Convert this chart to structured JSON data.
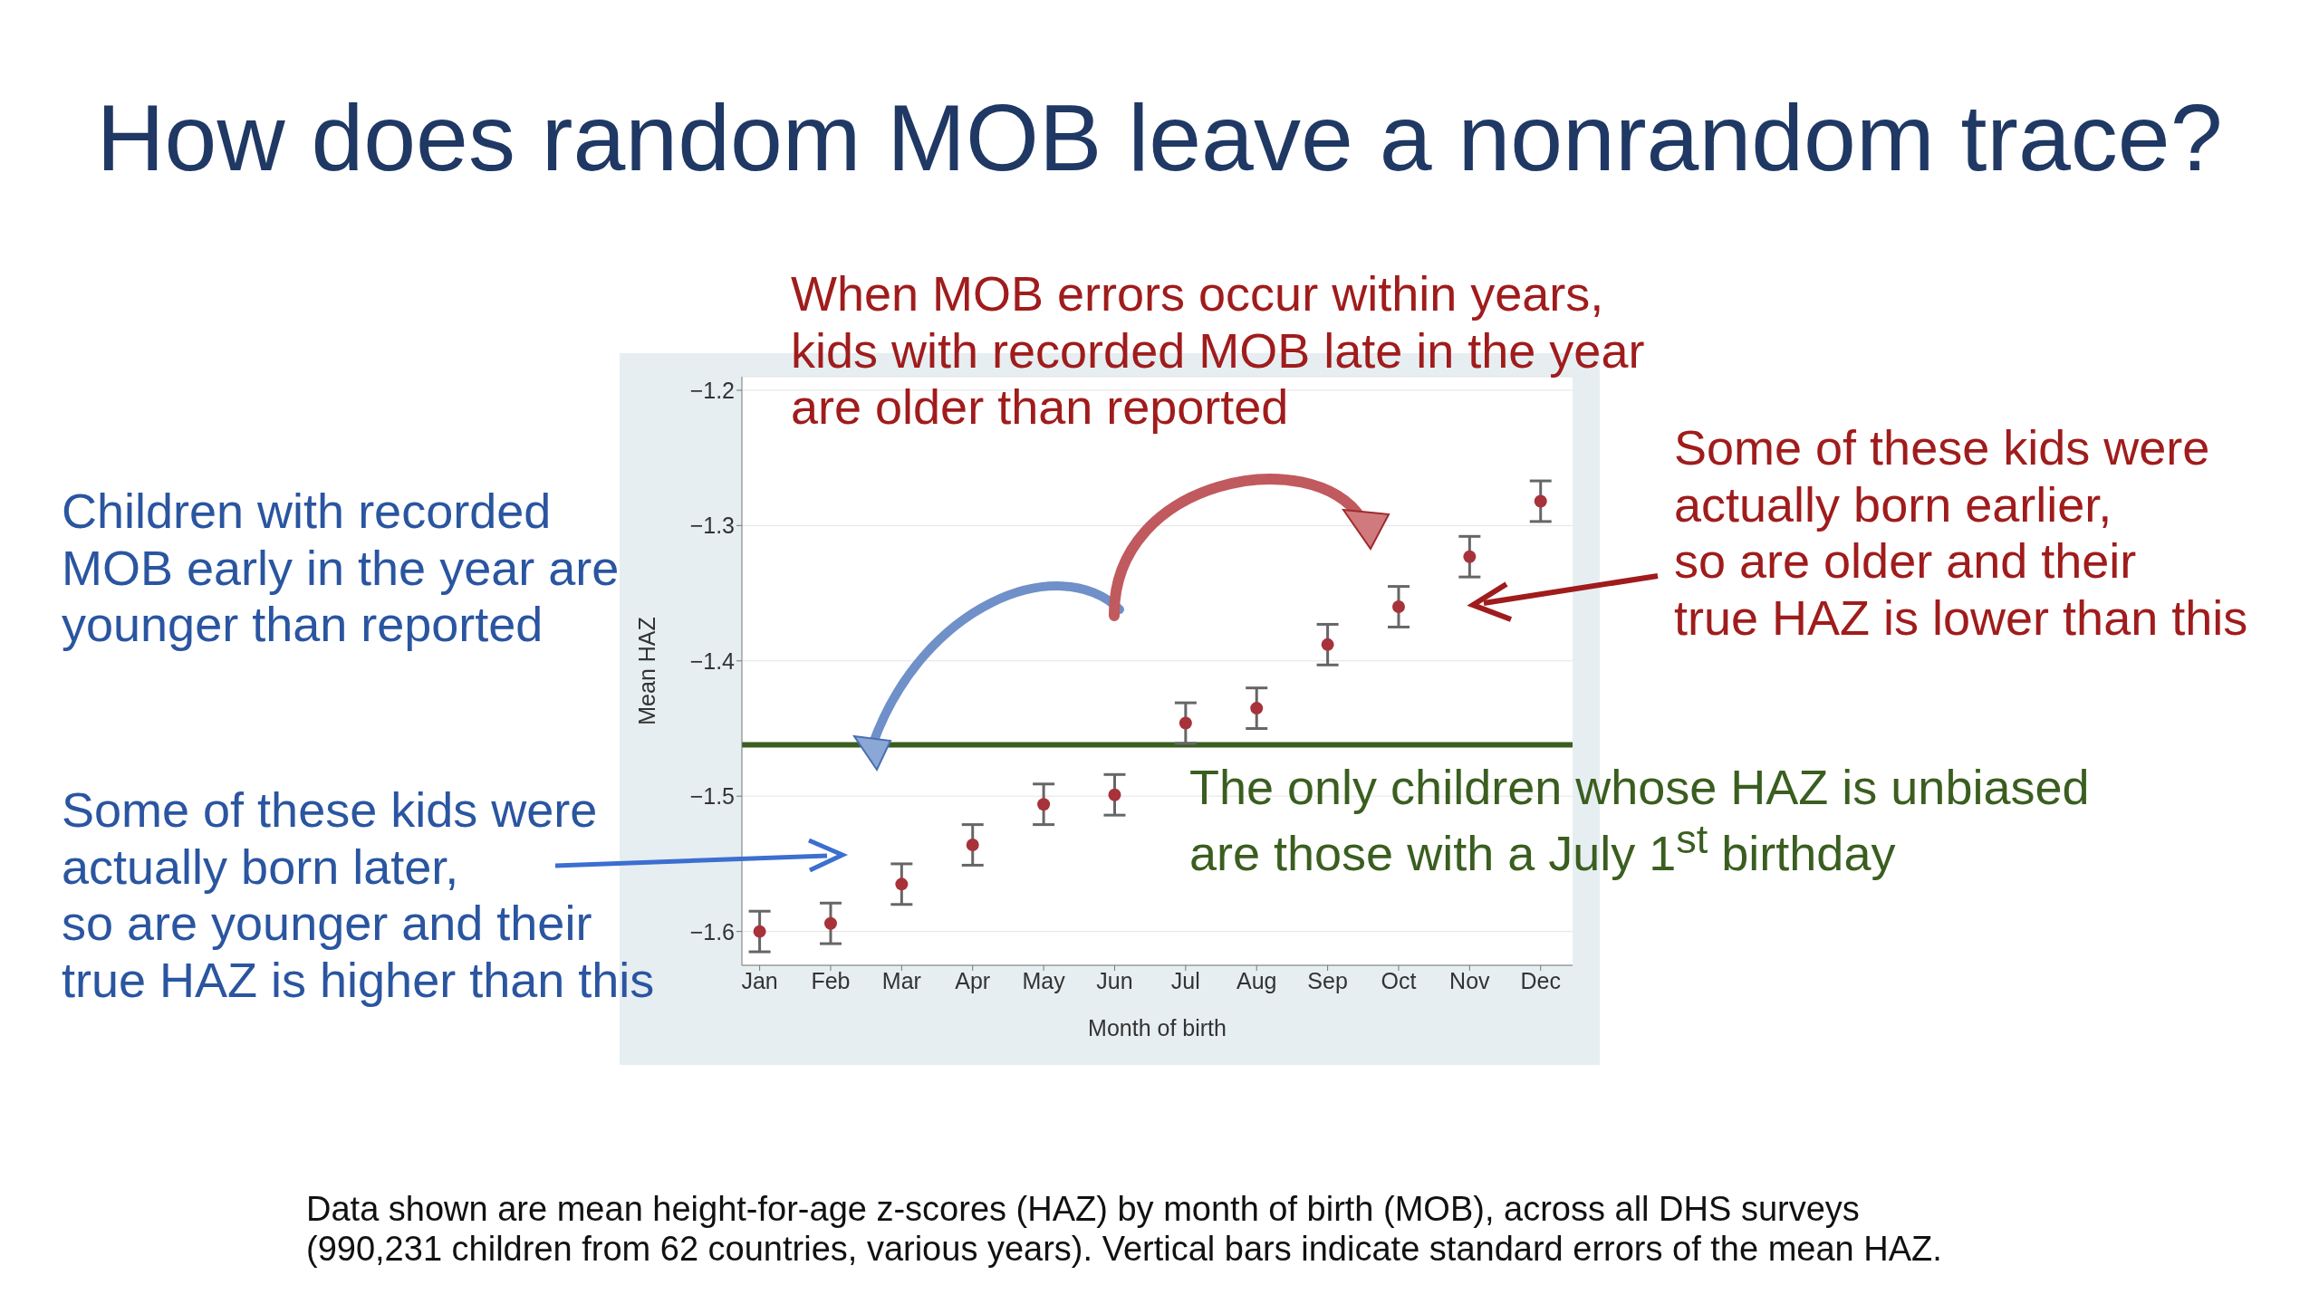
{
  "chart_data": {
    "type": "scatter",
    "title": "How does random MOB leave a nonrandom trace?",
    "xlabel": "Month of birth",
    "ylabel": "Mean HAZ",
    "categories": [
      "Jan",
      "Feb",
      "Mar",
      "Apr",
      "May",
      "Jun",
      "Jul",
      "Aug",
      "Sep",
      "Oct",
      "Nov",
      "Dec"
    ],
    "series": [
      {
        "color": "#a8323a",
        "values": [
          -1.6,
          -1.594,
          -1.565,
          -1.536,
          -1.506,
          -1.499,
          -1.446,
          -1.435,
          -1.388,
          -1.36,
          -1.323,
          -1.282
        ],
        "errors": [
          0.015,
          0.015,
          0.015,
          0.015,
          0.015,
          0.015,
          0.015,
          0.015,
          0.015,
          0.015,
          0.015,
          0.015
        ]
      }
    ],
    "ylim": [
      -1.625,
      -1.19
    ],
    "yticks": [
      -1.6,
      -1.5,
      -1.4,
      -1.3,
      -1.2
    ],
    "grid": "y",
    "marker": "circle",
    "ref_lines": [
      {
        "axis": "y",
        "value": -1.462,
        "color": "#3a5e1f"
      }
    ],
    "annotations": [
      "When MOB errors occur within years,\nkids with recorded MOB late in the year\nare older than reported",
      "Children with recorded\nMOB early in the year are\nyounger than reported",
      "Some of these kids were\nactually born later,\nso are younger and their\ntrue HAZ is higher than this",
      "Some of these kids were\nactually born earlier,\nso are older and their\ntrue HAZ is lower than this",
      "The only children whose HAZ is unbiased\nare those with a July 1$^{st}$ birthday",
      "Data shown are mean height-for-age z-scores (HAZ) by month of birth (MOB), across all DHS surveys\n(990,231 children from 62 countries, various years). Vertical bars indicate standard errors of the mean HAZ."
    ]
  }
}
